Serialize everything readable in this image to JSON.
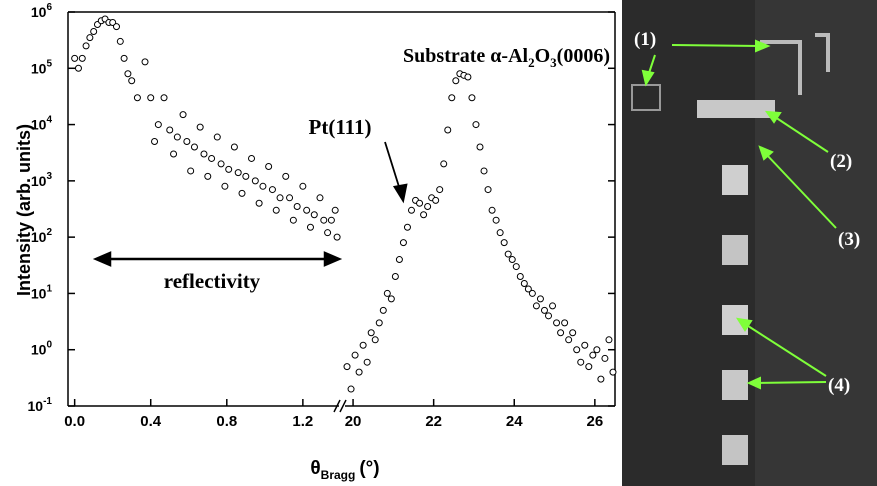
{
  "chart_data": [
    {
      "type": "scatter",
      "log_y": true,
      "ylabel": "Intensity (arb. units)",
      "xlabel": "θ",
      "xlabel_sub": "Bragg",
      "xlabel_unit": "(°)",
      "annotation": "reflectivity",
      "color": "#000000",
      "xlim": [
        -0.035,
        1.39
      ],
      "xticks": [
        {
          "value": 0,
          "label": "0.0"
        },
        0.4,
        0.8,
        1.2
      ],
      "ylim": [
        0.1,
        1000000
      ],
      "yticks": [
        {
          "value": 0.1,
          "label": "10",
          "sup": "-1"
        },
        {
          "value": 1,
          "label": "10",
          "sup": "0"
        },
        {
          "value": 10,
          "label": "10",
          "sup": "1"
        },
        {
          "value": 100,
          "label": "10",
          "sup": "2"
        },
        {
          "value": 1000,
          "label": "10",
          "sup": "3"
        },
        {
          "value": 10000,
          "label": "10",
          "sup": "4"
        },
        {
          "value": 100000,
          "label": "10",
          "sup": "5"
        },
        {
          "value": 1000000,
          "label": "10",
          "sup": "6"
        }
      ],
      "x": [
        0,
        0.02,
        0.04,
        0.06,
        0.08,
        0.1,
        0.12,
        0.14,
        0.16,
        0.18,
        0.2,
        0.22,
        0.24,
        0.26,
        0.28,
        0.3,
        0.33,
        0.37,
        0.4,
        0.42,
        0.44,
        0.47,
        0.5,
        0.52,
        0.54,
        0.57,
        0.59,
        0.61,
        0.63,
        0.66,
        0.68,
        0.7,
        0.72,
        0.75,
        0.77,
        0.79,
        0.81,
        0.84,
        0.86,
        0.88,
        0.9,
        0.93,
        0.95,
        0.97,
        0.99,
        1.02,
        1.04,
        1.06,
        1.08,
        1.11,
        1.13,
        1.15,
        1.17,
        1.2,
        1.22,
        1.24,
        1.26,
        1.29,
        1.31,
        1.33,
        1.35,
        1.37,
        1.38
      ],
      "values": [
        150000,
        100000,
        150000,
        250000,
        350000,
        450000,
        600000,
        700000,
        750000,
        650000,
        650000,
        550000,
        300000,
        150000,
        80000,
        60000,
        30000,
        130000,
        30000,
        5000,
        10000,
        30000,
        8000,
        3000,
        6000,
        15000,
        5000,
        1500,
        4000,
        9000,
        3000,
        1200,
        2500,
        6000,
        2000,
        800,
        1600,
        4000,
        1400,
        600,
        1200,
        2500,
        1000,
        400,
        800,
        1800,
        700,
        300,
        500,
        1200,
        500,
        200,
        350,
        800,
        300,
        150,
        250,
        500,
        200,
        120,
        200,
        300,
        100
      ]
    },
    {
      "type": "scatter",
      "log_y": true,
      "annotation": "Pt(111)",
      "title_parts": [
        "Substrate α-Al",
        "2",
        "O",
        "3",
        "(0006)"
      ],
      "color": "#000000",
      "xlim": [
        19.8,
        26.5
      ],
      "xticks": [
        20,
        22,
        24,
        26
      ],
      "ylim": [
        0.1,
        1000000
      ],
      "x": [
        19.85,
        19.95,
        20.05,
        20.15,
        20.25,
        20.35,
        20.45,
        20.55,
        20.65,
        20.75,
        20.85,
        20.95,
        21.05,
        21.15,
        21.25,
        21.35,
        21.45,
        21.55,
        21.65,
        21.75,
        21.85,
        21.95,
        22.05,
        22.15,
        22.25,
        22.35,
        22.45,
        22.55,
        22.65,
        22.75,
        22.85,
        22.95,
        23.05,
        23.15,
        23.25,
        23.35,
        23.45,
        23.55,
        23.65,
        23.75,
        23.85,
        23.95,
        24.05,
        24.15,
        24.25,
        24.35,
        24.45,
        24.55,
        24.65,
        24.75,
        24.85,
        24.95,
        25.05,
        25.15,
        25.25,
        25.35,
        25.45,
        25.55,
        25.65,
        25.75,
        25.85,
        25.95,
        26.05,
        26.15,
        26.25,
        26.35,
        26.45
      ],
      "values": [
        0.5,
        0.2,
        0.8,
        0.4,
        1.2,
        0.6,
        2,
        1.5,
        3,
        5,
        10,
        8,
        20,
        40,
        80,
        150,
        300,
        450,
        400,
        250,
        350,
        500,
        450,
        700,
        2000,
        8000,
        30000,
        60000,
        80000,
        75000,
        70000,
        30000,
        10000,
        4000,
        1500,
        700,
        300,
        200,
        120,
        80,
        50,
        40,
        30,
        20,
        15,
        12,
        10,
        6,
        8,
        5,
        4,
        6,
        3,
        2,
        3,
        1.5,
        2,
        1,
        0.6,
        1.2,
        0.5,
        0.8,
        1,
        0.3,
        0.7,
        1.5,
        0.4
      ]
    }
  ],
  "image_panel": {
    "labels": [
      "(1)",
      "(2)",
      "(3)",
      "(4)"
    ]
  }
}
